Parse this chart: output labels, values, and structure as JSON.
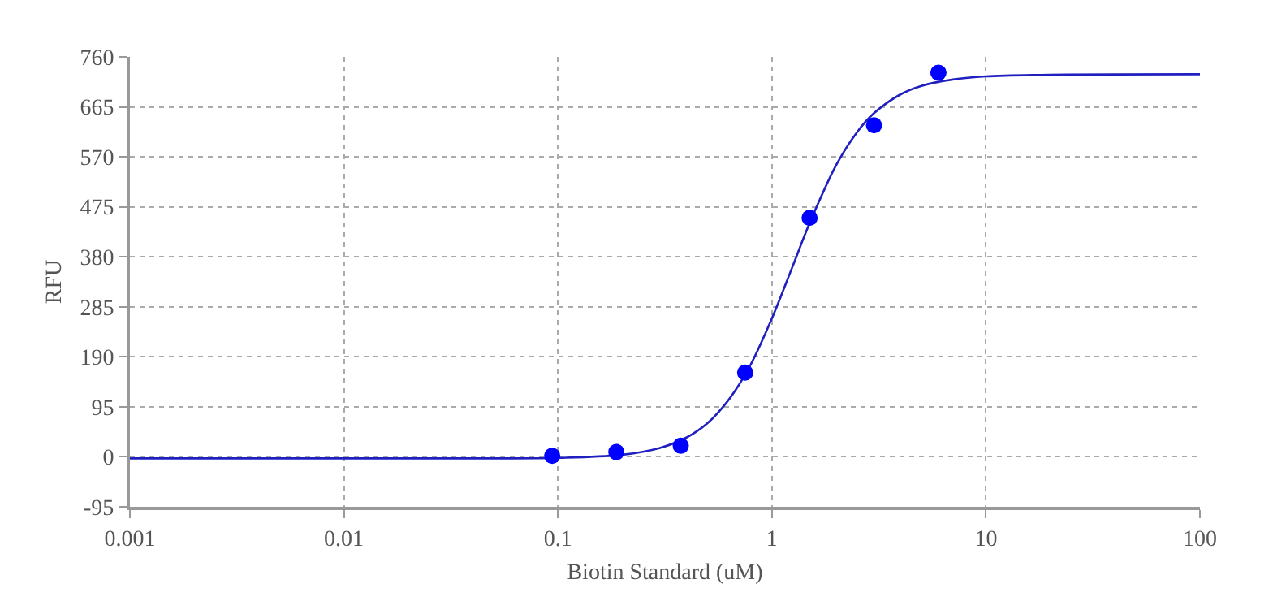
{
  "chart_data": {
    "type": "scatter",
    "xlabel": "Biotin Standard (uM)",
    "ylabel": "RFU",
    "log": "x",
    "grid": true,
    "xlim": [
      0.001,
      100
    ],
    "xticks": [
      0.001,
      0.01,
      0.1,
      1,
      10,
      100
    ],
    "ylim": [
      -95,
      760
    ],
    "yticks": [
      -95,
      0,
      95,
      190,
      285,
      380,
      475,
      570,
      665,
      760
    ],
    "series": [
      {
        "color": "#0000ff",
        "marker": "circle",
        "x": [
          0.094,
          0.1875,
          0.375,
          0.75,
          1.5,
          3,
          6
        ],
        "values": [
          2,
          9,
          21,
          160,
          454,
          630,
          730
        ]
      },
      {
        "type": "line",
        "color": "#2020c0",
        "marker": "none",
        "line_style": "solid",
        "x": [
          0.001,
          0.01,
          0.05,
          0.1,
          0.2,
          0.3,
          0.4,
          0.5,
          0.6,
          0.7,
          0.8,
          1,
          1.25,
          1.5,
          2,
          2.5,
          3,
          4,
          5,
          7,
          10,
          20,
          100
        ],
        "values": [
          -3,
          -3,
          -3,
          -2,
          4,
          17,
          37,
          64,
          98,
          136,
          177,
          263,
          362,
          444,
          555,
          617,
          653,
          689,
          705,
          717,
          723,
          726,
          727
        ]
      }
    ]
  }
}
